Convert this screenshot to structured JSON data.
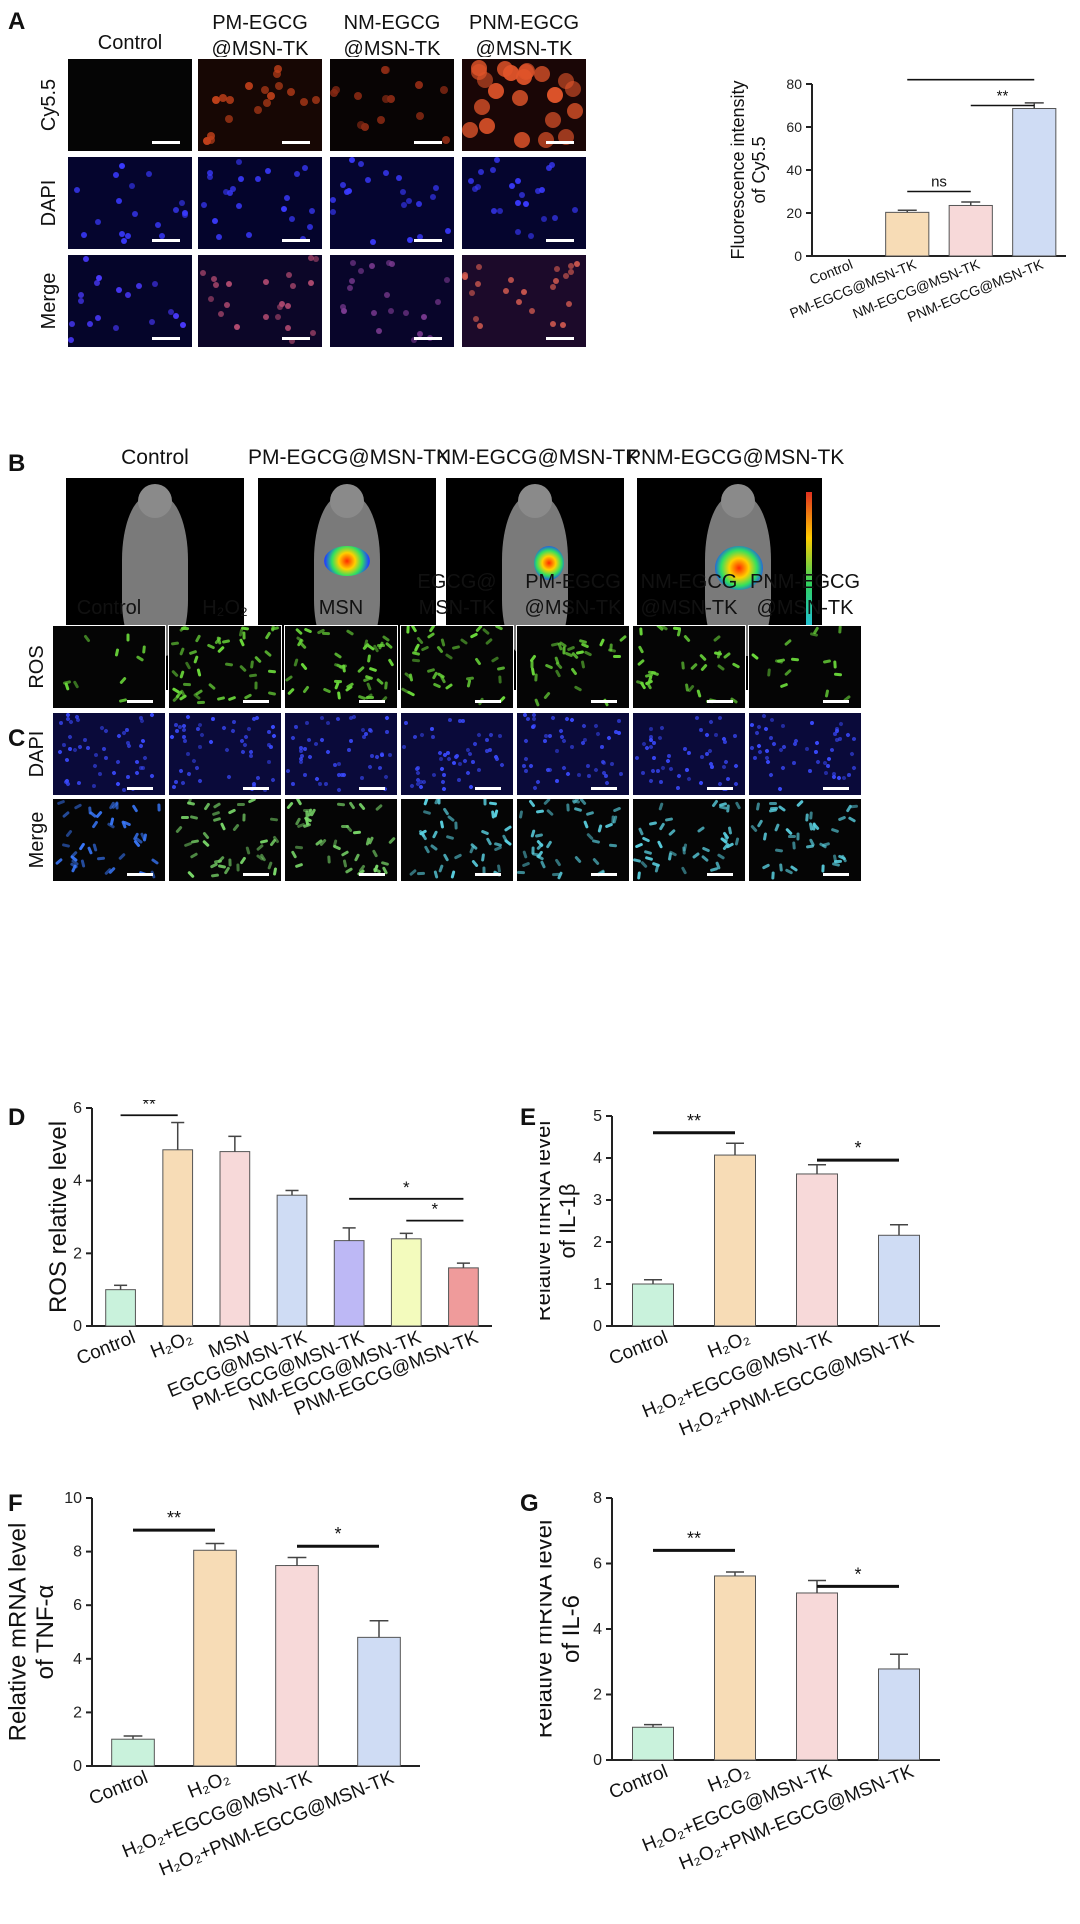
{
  "panel_letters": [
    "A",
    "B",
    "C",
    "D",
    "E",
    "F",
    "G"
  ],
  "panelA": {
    "columns": [
      "Control",
      "PM-EGCG\n@MSN-TK",
      "NM-EGCG\n@MSN-TK",
      "PNM-EGCG\n@MSN-TK"
    ],
    "rows": [
      "Cy5.5",
      "DAPI",
      "Merge"
    ]
  },
  "panelB": {
    "titles": [
      "Control",
      "PM-EGCG@MSN-TK",
      "NM-EGCG@MSN-TK",
      "PNM-EGCG@MSN-TK"
    ]
  },
  "panelC": {
    "columns": [
      "Control",
      "H₂O₂",
      "MSN",
      "EGCG@\nMSN-TK",
      "PM-EGCG\n@MSN-TK",
      "NM-EGCG\n@MSN-TK",
      "PNM-EGCG\n@MSN-TK"
    ],
    "rows": [
      "ROS",
      "DAPI",
      "Merge"
    ]
  },
  "colors": {
    "mint": "#c9f2dc",
    "peach": "#f7dcb6",
    "pink": "#f7d9d9",
    "blue": "#cfdcf4",
    "lavender": "#bdb8f5",
    "yellow": "#f3fbbd",
    "red": "#ef9b9b"
  },
  "chart_data": [
    {
      "id": "A",
      "type": "bar",
      "categories": [
        "Control",
        "PM-EGCG@MSN-TK",
        "NM-EGCG@MSN-TK",
        "PNM-EGCG@MSN-TK"
      ],
      "values": [
        0,
        20.3,
        23.5,
        68.6
      ],
      "errors": [
        0,
        1.0,
        1.6,
        2.6
      ],
      "colors": [
        "#c9f2dc",
        "#f7dcb6",
        "#f7d9d9",
        "#cfdcf4"
      ],
      "ylabel": "Fluorescence intensity\nof Cy5.5",
      "ylim": [
        0,
        80
      ],
      "yticks": [
        0,
        20,
        40,
        60,
        80
      ],
      "significance": [
        {
          "from": 1,
          "to": 2,
          "label": "ns"
        },
        {
          "from": 2,
          "to": 3,
          "label": "**"
        },
        {
          "from": 1,
          "to": 3,
          "label": "**"
        }
      ]
    },
    {
      "id": "D",
      "type": "bar",
      "categories": [
        "Control",
        "H₂O₂",
        "MSN",
        "EGCG@MSN-TK",
        "PM-EGCG@MSN-TK",
        "NM-EGCG@MSN-TK",
        "PNM-EGCG@MSN-TK"
      ],
      "values": [
        1.0,
        4.85,
        4.8,
        3.6,
        2.35,
        2.4,
        1.6
      ],
      "errors": [
        0.12,
        0.75,
        0.42,
        0.13,
        0.35,
        0.15,
        0.13
      ],
      "colors": [
        "#c9f2dc",
        "#f7dcb6",
        "#f7d9d9",
        "#cfdcf4",
        "#bdb8f5",
        "#f3fbbd",
        "#ef9b9b"
      ],
      "ylabel": "ROS relative level",
      "ylim": [
        0,
        6
      ],
      "yticks": [
        0,
        2,
        4,
        6
      ],
      "significance": [
        {
          "from": 0,
          "to": 1,
          "label": "**"
        },
        {
          "from": 4,
          "to": 6,
          "label": "*"
        },
        {
          "from": 5,
          "to": 6,
          "label": "*"
        }
      ]
    },
    {
      "id": "E",
      "type": "bar",
      "categories": [
        "Control",
        "H₂O₂",
        "H₂O₂+EGCG@MSN-TK",
        "H₂O₂+PNM-EGCG@MSN-TK"
      ],
      "values": [
        1.0,
        4.07,
        3.62,
        2.16
      ],
      "errors": [
        0.1,
        0.28,
        0.22,
        0.25
      ],
      "colors": [
        "#c9f2dc",
        "#f7dcb6",
        "#f7d9d9",
        "#cfdcf4"
      ],
      "ylabel": "Relative mRNA level\nof IL-1β",
      "ylim": [
        0,
        5
      ],
      "yticks": [
        0,
        1,
        2,
        3,
        4,
        5
      ],
      "significance": [
        {
          "from": 0,
          "to": 1,
          "label": "**"
        },
        {
          "from": 2,
          "to": 3,
          "label": "*"
        }
      ]
    },
    {
      "id": "F",
      "type": "bar",
      "categories": [
        "Control",
        "H₂O₂",
        "H₂O₂+EGCG@MSN-TK",
        "H₂O₂+PNM-EGCG@MSN-TK"
      ],
      "values": [
        1.0,
        8.05,
        7.48,
        4.8
      ],
      "errors": [
        0.12,
        0.25,
        0.3,
        0.62
      ],
      "colors": [
        "#c9f2dc",
        "#f7dcb6",
        "#f7d9d9",
        "#cfdcf4"
      ],
      "ylabel": "Relative mRNA level\nof TNF-α",
      "ylim": [
        0,
        10
      ],
      "yticks": [
        0,
        2,
        4,
        6,
        8,
        10
      ],
      "significance": [
        {
          "from": 0,
          "to": 1,
          "label": "**"
        },
        {
          "from": 2,
          "to": 3,
          "label": "*"
        }
      ]
    },
    {
      "id": "G",
      "type": "bar",
      "categories": [
        "Control",
        "H₂O₂",
        "H₂O₂+EGCG@MSN-TK",
        "H₂O₂+PNM-EGCG@MSN-TK"
      ],
      "values": [
        1.0,
        5.62,
        5.1,
        2.78
      ],
      "errors": [
        0.08,
        0.12,
        0.38,
        0.45
      ],
      "colors": [
        "#c9f2dc",
        "#f7dcb6",
        "#f7d9d9",
        "#cfdcf4"
      ],
      "ylabel": "Relative mRNA level\nof IL-6",
      "ylim": [
        0,
        8
      ],
      "yticks": [
        0,
        2,
        4,
        6,
        8
      ],
      "significance": [
        {
          "from": 0,
          "to": 1,
          "label": "**"
        },
        {
          "from": 2,
          "to": 3,
          "label": "*"
        }
      ]
    }
  ]
}
